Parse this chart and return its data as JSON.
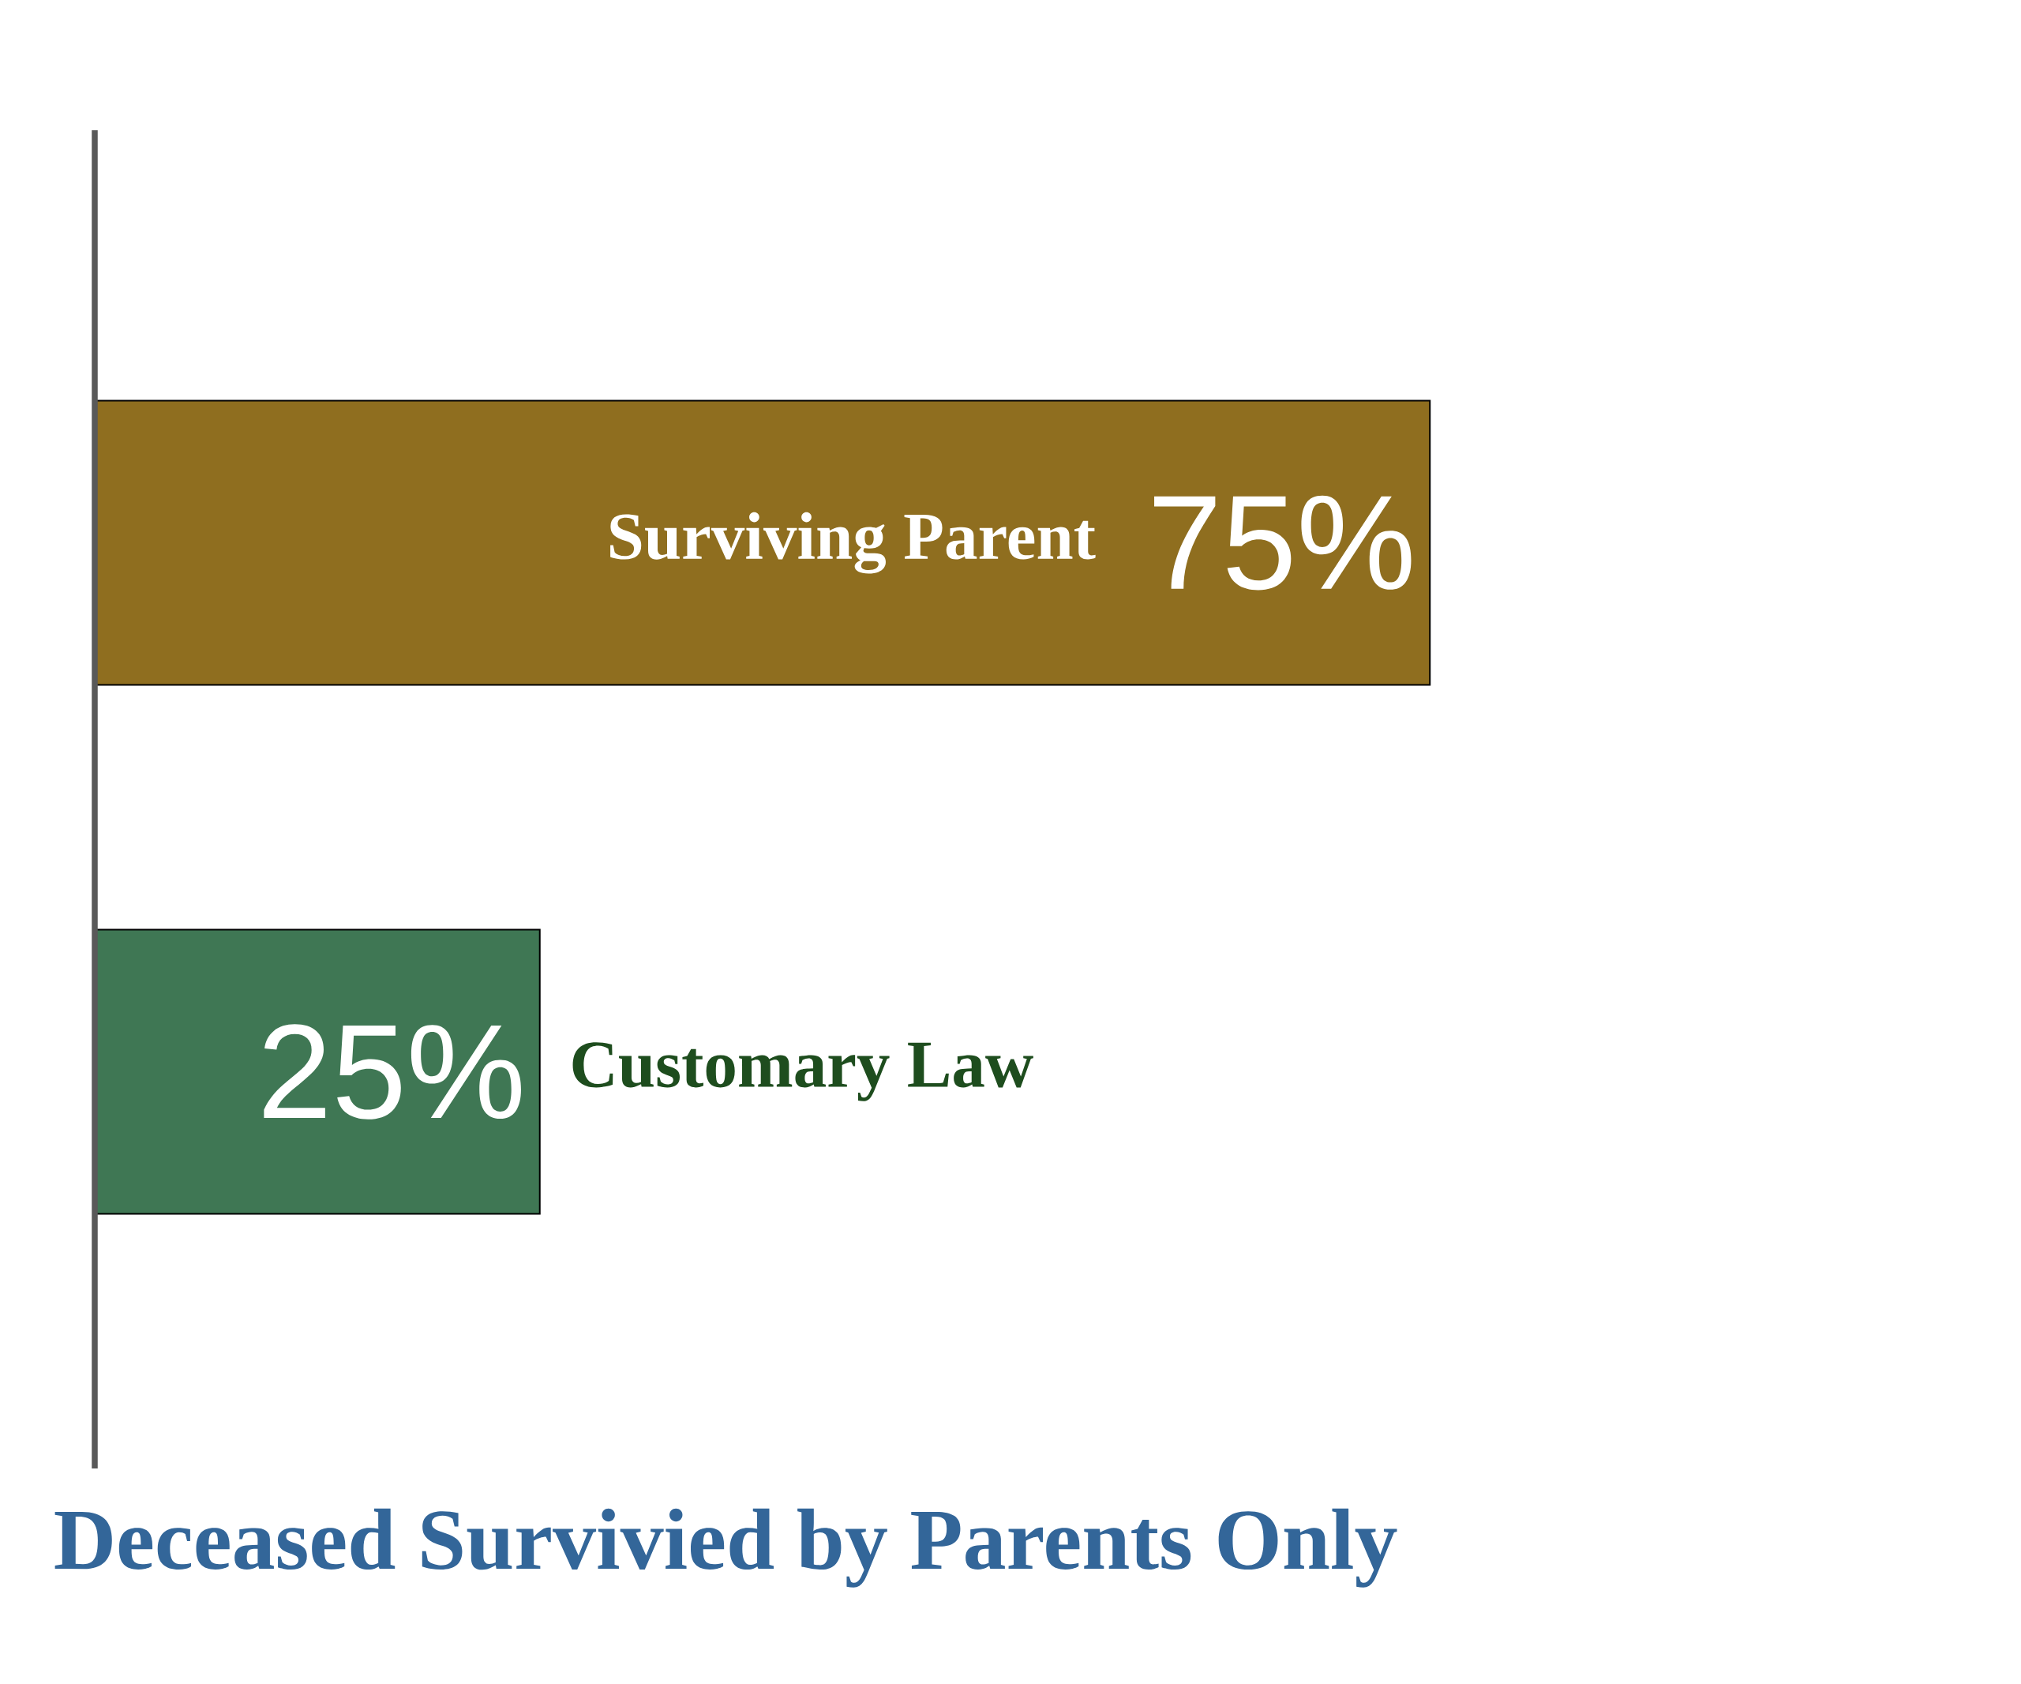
{
  "chart_data": {
    "type": "bar",
    "orientation": "horizontal",
    "title": "Deceased Survivied by Parents Only",
    "categories": [
      "Surviving Parent",
      "Customary Law"
    ],
    "values": [
      75,
      25
    ],
    "value_labels": [
      "75%",
      "25%"
    ],
    "colors": [
      "#8f6e1f",
      "#3f7754"
    ]
  }
}
